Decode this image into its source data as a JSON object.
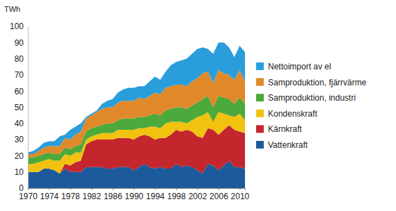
{
  "chart_data": {
    "type": "area",
    "stacked": true,
    "y_label": "TWh",
    "legend": "right",
    "x": [
      1970,
      1971,
      1972,
      1973,
      1974,
      1975,
      1976,
      1977,
      1978,
      1979,
      1980,
      1981,
      1982,
      1983,
      1984,
      1985,
      1986,
      1987,
      1988,
      1989,
      1990,
      1991,
      1992,
      1993,
      1994,
      1995,
      1996,
      1997,
      1998,
      1999,
      2000,
      2001,
      2002,
      2003,
      2004,
      2005,
      2006,
      2007,
      2008,
      2009,
      2010,
      2011
    ],
    "xlim": [
      1970,
      2011
    ],
    "xticks": [
      1970,
      1974,
      1978,
      1982,
      1986,
      1990,
      1994,
      1998,
      2002,
      2006,
      2010
    ],
    "ylim": [
      0,
      100
    ],
    "yticks": [
      0,
      10,
      20,
      30,
      40,
      50,
      60,
      70,
      80,
      90,
      100
    ],
    "series": [
      {
        "name": "Vattenkraft",
        "color": "#1d5a9b",
        "values": [
          10,
          10,
          10,
          12,
          12,
          11,
          9,
          12,
          10,
          10,
          10,
          13,
          13,
          13,
          13,
          12,
          12,
          13,
          13,
          13,
          11,
          13,
          15,
          13,
          12,
          13,
          12,
          12,
          15,
          13,
          14,
          13,
          11,
          9,
          15,
          14,
          11,
          14,
          17,
          13,
          13,
          12
        ]
      },
      {
        "name": "Kärnkraft",
        "color": "#c4262e",
        "values": [
          0,
          0,
          0,
          0,
          0,
          0,
          0,
          3,
          4,
          6,
          7,
          14,
          16,
          17,
          17,
          18,
          18,
          18,
          18,
          18,
          19,
          19,
          18,
          19,
          18,
          18,
          19,
          21,
          21,
          22,
          22,
          22,
          21,
          22,
          22,
          22,
          22,
          22,
          22,
          23,
          22,
          22
        ]
      },
      {
        "name": "Kondenskraft",
        "color": "#f1c20f",
        "values": [
          5,
          5,
          6,
          5,
          6,
          6,
          8,
          6,
          6,
          6,
          5,
          3,
          3,
          3,
          4,
          4,
          4,
          5,
          5,
          5,
          6,
          5,
          4,
          6,
          8,
          6,
          9,
          8,
          5,
          6,
          4,
          7,
          12,
          14,
          10,
          5,
          14,
          10,
          6,
          8,
          11,
          8
        ]
      },
      {
        "name": "Samproduktion, industri",
        "color": "#4ca93b",
        "values": [
          4,
          4,
          4,
          4,
          4,
          4,
          4,
          4,
          4,
          4,
          5,
          5,
          5,
          5,
          5,
          6,
          6,
          6,
          7,
          7,
          7,
          7,
          7,
          7,
          8,
          8,
          8,
          8,
          9,
          9,
          9,
          9,
          9,
          10,
          10,
          9,
          10,
          10,
          10,
          8,
          10,
          10
        ]
      },
      {
        "name": "Samproduktion, fjärrvärme",
        "color": "#e0892b",
        "values": [
          2,
          2,
          3,
          4,
          4,
          5,
          5,
          6,
          6,
          7,
          8,
          8,
          8,
          9,
          10,
          10,
          10,
          11,
          11,
          11,
          11,
          12,
          11,
          12,
          13,
          13,
          14,
          14,
          14,
          14,
          14,
          15,
          15,
          16,
          15,
          15,
          16,
          15,
          15,
          15,
          17,
          14
        ]
      },
      {
        "name": "Nettoimport av el",
        "color": "#2a9edb",
        "values": [
          1,
          2,
          2,
          3,
          3,
          3,
          6,
          2,
          6,
          5,
          5,
          1,
          1,
          1,
          3,
          4,
          5,
          6,
          7,
          8,
          8,
          7,
          8,
          9,
          10,
          9,
          10,
          13,
          14,
          15,
          17,
          17,
          18,
          16,
          14,
          18,
          17,
          19,
          17,
          14,
          15,
          18
        ]
      }
    ]
  }
}
